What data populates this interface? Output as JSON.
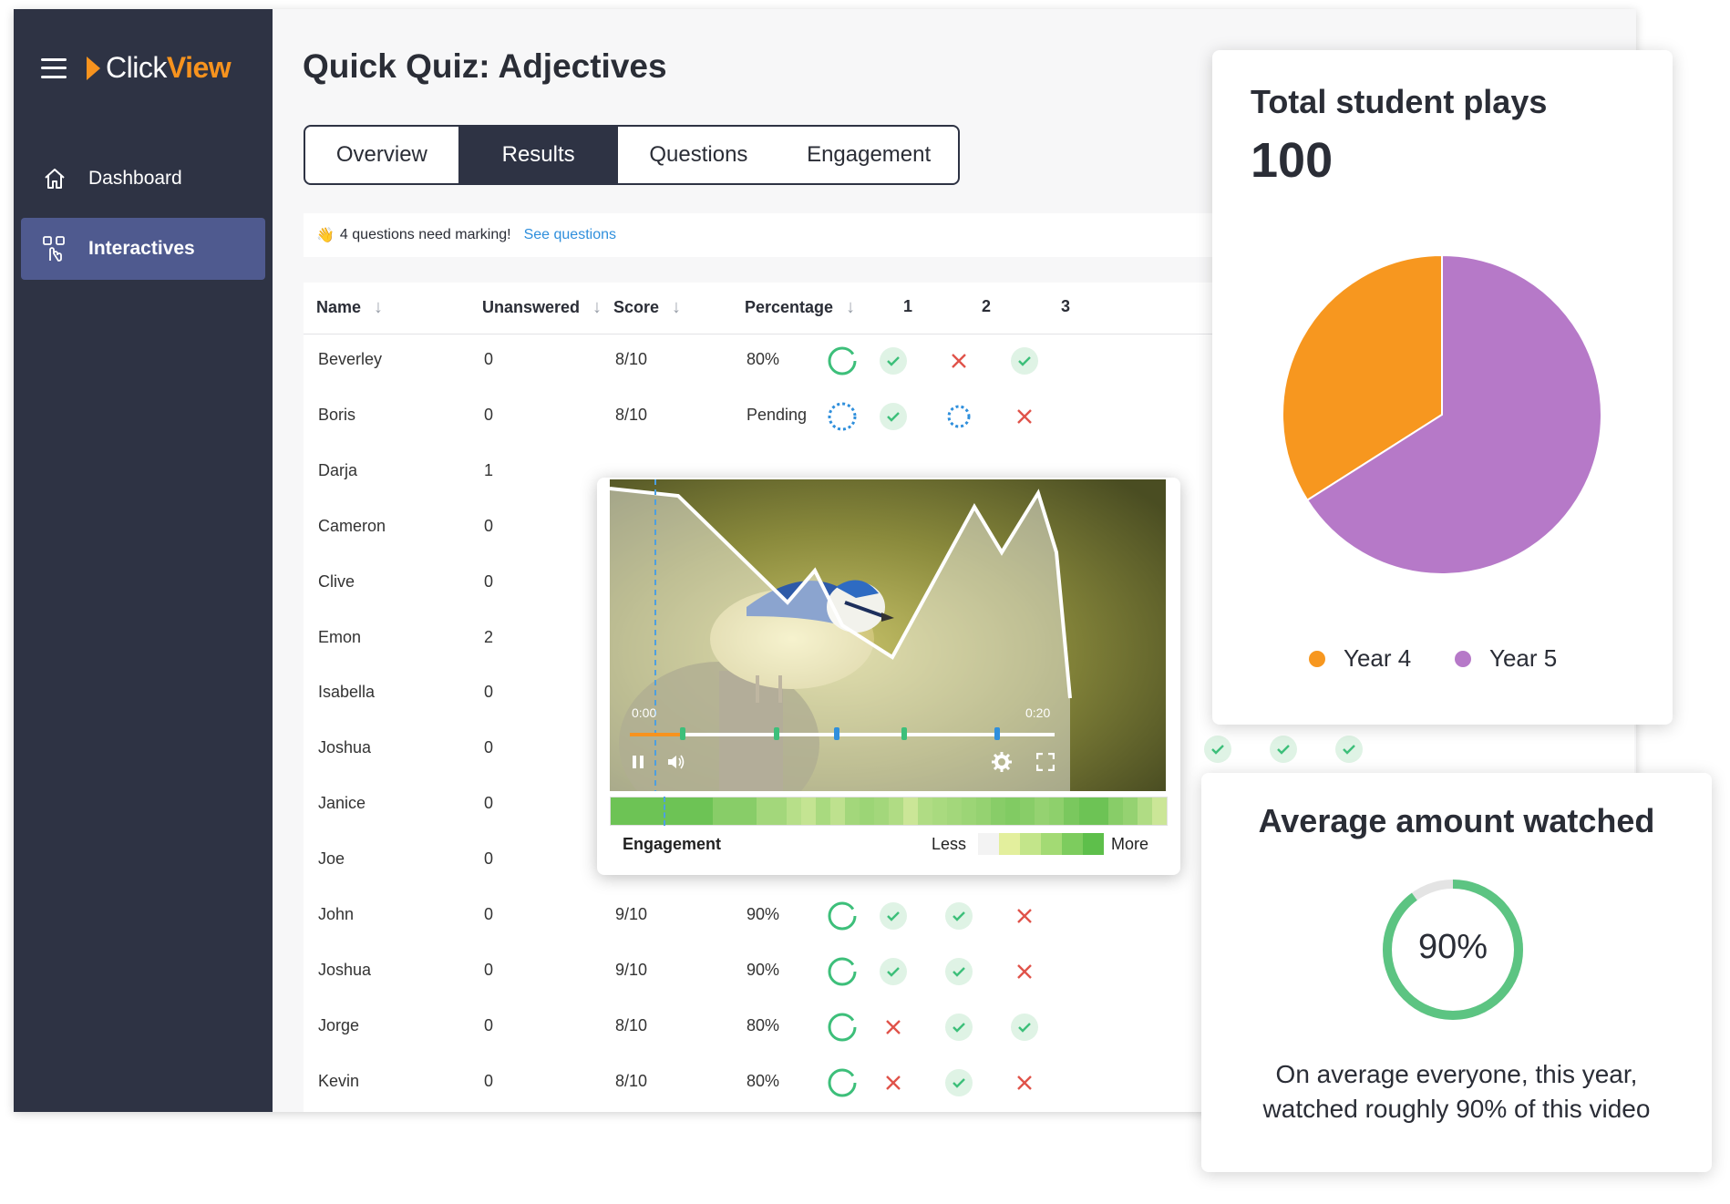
{
  "brand": {
    "click": "Click",
    "view": "View",
    "colors": {
      "accent": "#f7931e",
      "sidebar": "#2e3344",
      "active_nav": "#4f5a8f"
    }
  },
  "sidebar": {
    "items": [
      {
        "label": "Dashboard",
        "icon": "home-icon",
        "active": false
      },
      {
        "label": "Interactives",
        "icon": "touch-icon",
        "active": true
      }
    ]
  },
  "page": {
    "title": "Quick Quiz: Adjectives"
  },
  "tabs": [
    {
      "label": "Overview",
      "active": false
    },
    {
      "label": "Results",
      "active": true
    },
    {
      "label": "Questions",
      "active": false
    },
    {
      "label": "Engagement",
      "active": false
    }
  ],
  "notice": {
    "icon": "wave-icon",
    "message": "4 questions need marking!",
    "link": "See questions"
  },
  "table": {
    "columns": [
      "Name",
      "Unanswered",
      "Score",
      "Percentage",
      "1",
      "2",
      "3"
    ],
    "rows": [
      {
        "name": "Beverley",
        "unanswered": "0",
        "score": "8/10",
        "percentage": "80%",
        "status": "done",
        "q": [
          "check",
          "cross",
          "check"
        ]
      },
      {
        "name": "Boris",
        "unanswered": "0",
        "score": "8/10",
        "percentage": "Pending",
        "status": "pending",
        "q": [
          "check",
          "pending",
          "cross"
        ]
      },
      {
        "name": "Darja",
        "unanswered": "1",
        "score": "",
        "percentage": "",
        "status": "hidden",
        "q": [
          "",
          "",
          ""
        ]
      },
      {
        "name": "Cameron",
        "unanswered": "0",
        "score": "",
        "percentage": "",
        "status": "hidden",
        "q": [
          "",
          "",
          ""
        ]
      },
      {
        "name": "Clive",
        "unanswered": "0",
        "score": "",
        "percentage": "",
        "status": "hidden",
        "q": [
          "",
          "",
          ""
        ]
      },
      {
        "name": "Emon",
        "unanswered": "2",
        "score": "",
        "percentage": "",
        "status": "hidden",
        "q": [
          "",
          "",
          ""
        ]
      },
      {
        "name": "Isabella",
        "unanswered": "0",
        "score": "",
        "percentage": "",
        "status": "hidden",
        "q": [
          "",
          "",
          ""
        ]
      },
      {
        "name": "Joshua",
        "unanswered": "0",
        "score": "",
        "percentage": "",
        "status": "hidden",
        "q": [
          "",
          "",
          ""
        ]
      },
      {
        "name": "Janice",
        "unanswered": "0",
        "score": "",
        "percentage": "",
        "status": "hidden",
        "q": [
          "",
          "",
          ""
        ]
      },
      {
        "name": "Joe",
        "unanswered": "0",
        "score": "",
        "percentage": "",
        "status": "hidden",
        "q": [
          "",
          "",
          ""
        ]
      },
      {
        "name": "John",
        "unanswered": "0",
        "score": "9/10",
        "percentage": "90%",
        "status": "done",
        "q": [
          "check",
          "check",
          "cross"
        ]
      },
      {
        "name": "Joshua",
        "unanswered": "0",
        "score": "9/10",
        "percentage": "90%",
        "status": "done",
        "q": [
          "check",
          "check",
          "cross"
        ]
      },
      {
        "name": "Jorge",
        "unanswered": "0",
        "score": "8/10",
        "percentage": "80%",
        "status": "done",
        "q": [
          "cross",
          "check",
          "check"
        ]
      },
      {
        "name": "Kevin",
        "unanswered": "0",
        "score": "8/10",
        "percentage": "80%",
        "status": "done",
        "q": [
          "cross",
          "check",
          "cross"
        ]
      }
    ],
    "extra_checks": 5
  },
  "video": {
    "time_start": "0:00",
    "time_end": "0:20",
    "played_fraction": 0.12,
    "engagement_label": "Engagement",
    "less": "Less",
    "more": "More",
    "heat_levels": [
      0.9,
      0.9,
      0.9,
      0.9,
      0.9,
      0.9,
      0.9,
      0.7,
      0.7,
      0.7,
      0.5,
      0.5,
      0.35,
      0.25,
      0.45,
      0.3,
      0.5,
      0.55,
      0.5,
      0.4,
      0.2,
      0.4,
      0.45,
      0.5,
      0.55,
      0.6,
      0.7,
      0.75,
      0.7,
      0.6,
      0.65,
      0.8,
      0.9,
      0.9,
      0.7,
      0.6,
      0.4,
      0.2
    ]
  },
  "plays": {
    "title": "Total student plays",
    "total": "100",
    "chart_data": {
      "type": "pie",
      "categories": [
        "Year 4",
        "Year 5"
      ],
      "values": [
        34,
        66
      ],
      "colors": [
        "#f7971f",
        "#b679c8"
      ],
      "legend": "bottom"
    }
  },
  "average": {
    "title": "Average amount watched",
    "percent_label": "90%",
    "value": 0.9,
    "description": "On average everyone, this year, watched roughly 90% of this video",
    "color": "#5cc482"
  }
}
